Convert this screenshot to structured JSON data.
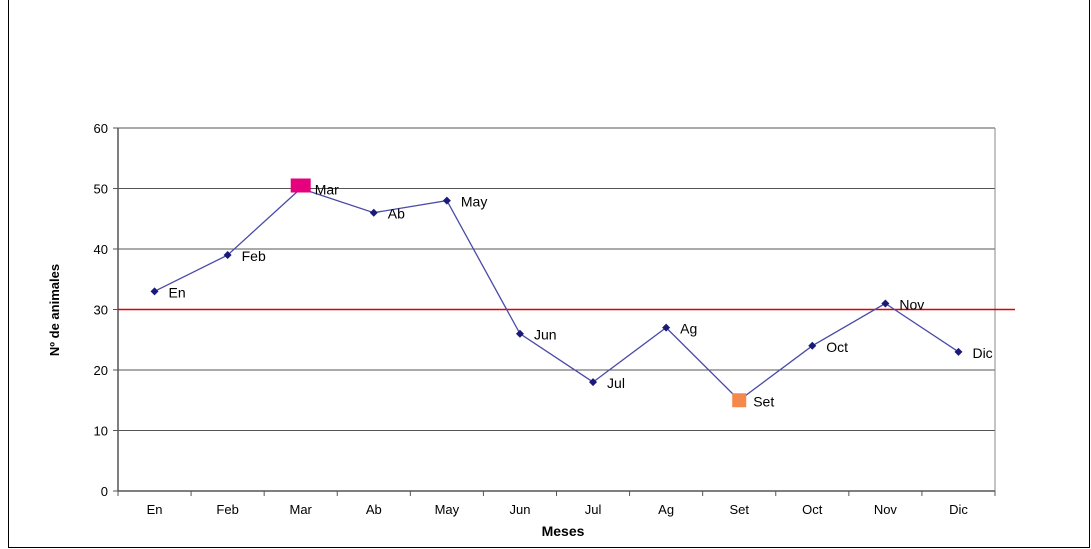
{
  "chart_data": {
    "type": "line",
    "title": "",
    "xlabel": "Meses",
    "ylabel": "Nº de animales",
    "categories": [
      "En",
      "Feb",
      "Mar",
      "Ab",
      "May",
      "Jun",
      "Jul",
      "Ag",
      "Set",
      "Oct",
      "Nov",
      "Dic"
    ],
    "series": [
      {
        "values": [
          33,
          39,
          50,
          46,
          48,
          26,
          18,
          27,
          15,
          24,
          31,
          23
        ],
        "color": "#4a4aa8"
      }
    ],
    "point_labels": [
      "En",
      "Feb",
      "Mar",
      "Ab",
      "May",
      "Jun",
      "Jul",
      "Ag",
      "Set",
      "Oct",
      "Nov",
      "Dic"
    ],
    "highlights": [
      {
        "category": "Mar",
        "color": "#e6007e"
      },
      {
        "category": "Set",
        "color": "#f4894b"
      }
    ],
    "reference_line": {
      "value": 30,
      "color": "#e00000"
    },
    "ylim": [
      0,
      60
    ],
    "yticks": [
      0,
      10,
      20,
      30,
      40,
      50,
      60
    ],
    "grid": true,
    "legend": "none"
  }
}
